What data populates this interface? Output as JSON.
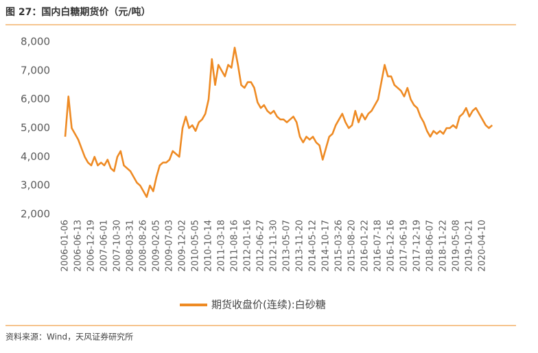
{
  "chart_data": {
    "type": "line",
    "title": "图 27：国内白糖期货价（元/吨）",
    "categories": [
      "2006-01-06",
      null,
      null,
      null,
      "2006-06-13",
      null,
      null,
      null,
      "2006-12-19",
      null,
      null,
      null,
      "2007-06-01",
      null,
      null,
      null,
      "2007-10-30",
      null,
      null,
      null,
      "2008-03-31",
      null,
      null,
      null,
      "2008-08-26",
      null,
      null,
      null,
      "2009-02-05",
      null,
      null,
      null,
      "2009-07-03",
      null,
      null,
      null,
      "2009-12-02",
      null,
      null,
      null,
      "2010-05-05",
      null,
      null,
      null,
      "2010-10-14",
      null,
      null,
      null,
      "2011-03-18",
      null,
      null,
      null,
      "2011-08-16",
      null,
      null,
      null,
      "2012-01-16",
      null,
      null,
      null,
      "2012-06-27",
      null,
      null,
      null,
      "2012-11-30",
      null,
      null,
      null,
      "2013-05-07",
      null,
      null,
      null,
      "2013-11-20",
      null,
      null,
      null,
      "2014-05-12",
      null,
      null,
      null,
      "2014-10-17",
      null,
      null,
      null,
      "2015-03-26",
      null,
      null,
      null,
      "2015-08-20",
      null,
      null,
      null,
      "2016-01-22",
      null,
      null,
      null,
      "2016-07-18",
      null,
      null,
      null,
      "2016-12-16",
      null,
      null,
      null,
      "2017-06-19",
      null,
      null,
      null,
      "2017-12-19",
      null,
      null,
      null,
      "2018-06-07",
      null,
      null,
      null,
      "2018-11-22",
      null,
      null,
      null,
      "2019-05-08",
      null,
      null,
      null,
      "2019-10-21",
      null,
      null,
      null,
      "2020-04-10",
      null,
      null,
      null
    ],
    "series": [
      {
        "name": "期货收盘价(连续):白砂糖",
        "color": "#ee8a23",
        "values": [
          4700,
          6100,
          5000,
          4800,
          4600,
          4300,
          4000,
          3800,
          3700,
          4000,
          3700,
          3800,
          3700,
          3900,
          3600,
          3500,
          4000,
          4200,
          3700,
          3600,
          3500,
          3300,
          3100,
          3000,
          2800,
          2600,
          3000,
          2800,
          3300,
          3700,
          3800,
          3800,
          3900,
          4200,
          4100,
          4000,
          5000,
          5400,
          5000,
          5100,
          4900,
          5200,
          5300,
          5500,
          6000,
          7400,
          6500,
          7200,
          7000,
          6800,
          7200,
          7100,
          7800,
          7200,
          6500,
          6400,
          6600,
          6600,
          6400,
          5900,
          5700,
          5800,
          5600,
          5500,
          5600,
          5400,
          5300,
          5300,
          5200,
          5300,
          5400,
          5200,
          4700,
          4500,
          4700,
          4600,
          4700,
          4500,
          4400,
          3900,
          4300,
          4700,
          4800,
          5100,
          5300,
          5500,
          5200,
          5000,
          5100,
          5600,
          5200,
          5500,
          5300,
          5500,
          5600,
          5800,
          6000,
          6600,
          7200,
          6800,
          6800,
          6500,
          6400,
          6300,
          6100,
          6400,
          6000,
          5800,
          5700,
          5400,
          5200,
          4900,
          4700,
          4900,
          4800,
          4900,
          4800,
          5000,
          5000,
          5100,
          5000,
          5400,
          5500,
          5700,
          5400,
          5600,
          5700,
          5500,
          5300,
          5100,
          5000,
          5100
        ]
      }
    ],
    "ylim": [
      2000,
      8000
    ],
    "yticks": [
      {
        "value": 2000,
        "label": "2,000"
      },
      {
        "value": 3000,
        "label": "3,000"
      },
      {
        "value": 4000,
        "label": "4,000"
      },
      {
        "value": 5000,
        "label": "5,000"
      },
      {
        "value": 6000,
        "label": "6,000"
      },
      {
        "value": 7000,
        "label": "7,000"
      },
      {
        "value": 8000,
        "label": "8,000"
      }
    ],
    "grid": false
  },
  "source": "资料来源：Wind，天风证券研究所"
}
